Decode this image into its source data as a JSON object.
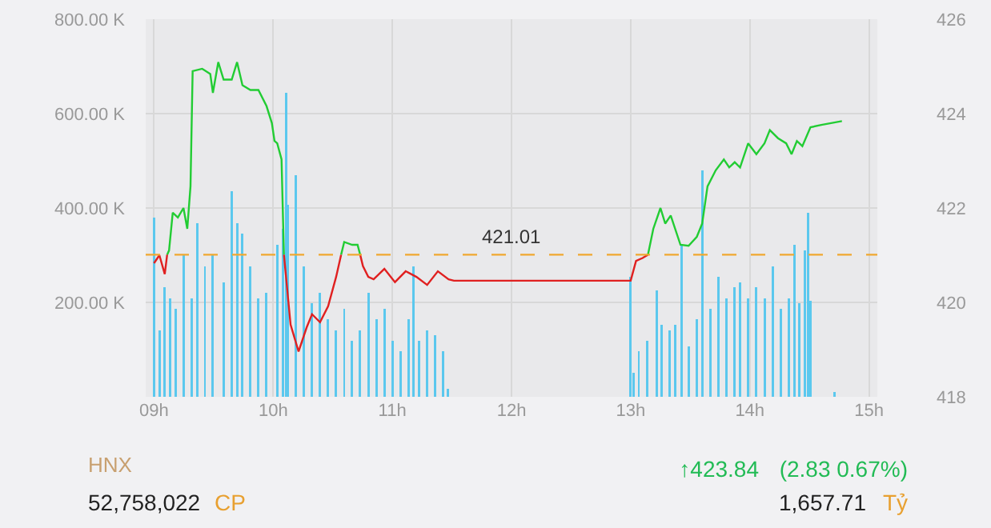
{
  "chart_data": {
    "type": "bar",
    "xlim": [
      8.93,
      15.07
    ],
    "xticks": [
      {
        "value": 9,
        "label": "09h"
      },
      {
        "value": 10,
        "label": "10h"
      },
      {
        "value": 11,
        "label": "11h"
      },
      {
        "value": 12,
        "label": "12h"
      },
      {
        "value": 13,
        "label": "13h"
      },
      {
        "value": 14,
        "label": "14h"
      },
      {
        "value": 15,
        "label": "15h"
      }
    ],
    "ylim": [
      0,
      800
    ],
    "yticks": [
      {
        "value": 200,
        "label": "200.00 K"
      },
      {
        "value": 400,
        "label": "400.00 K"
      },
      {
        "value": 600,
        "label": "600.00 K"
      },
      {
        "value": 800,
        "label": "800.00 K"
      }
    ],
    "y2lim": [
      418,
      426
    ],
    "y2ticks": [
      418,
      420,
      422,
      424,
      426
    ],
    "grid": true,
    "legend": false,
    "series": [
      {
        "color": "#5bc8ee",
        "x": [
          9.0,
          9.045,
          9.09,
          9.135,
          9.18,
          9.247,
          9.315,
          9.36,
          9.427,
          9.494,
          9.584,
          9.652,
          9.697,
          9.742,
          9.809,
          9.876,
          9.944,
          10.034,
          10.079,
          10.11,
          10.124,
          10.191,
          10.258,
          10.326,
          10.393,
          10.461,
          10.528,
          10.596,
          10.663,
          10.73,
          10.798,
          10.865,
          10.933,
          11.0,
          11.067,
          11.135,
          11.18,
          11.225,
          11.292,
          11.36,
          11.427,
          11.463,
          13.0,
          13.025,
          13.068,
          13.14,
          13.222,
          13.258,
          13.327,
          13.373,
          13.427,
          13.486,
          13.555,
          13.6,
          13.668,
          13.736,
          13.805,
          13.873,
          13.918,
          13.986,
          14.055,
          14.123,
          14.191,
          14.259,
          14.327,
          14.373,
          14.418,
          14.464,
          14.486,
          14.509,
          14.709
        ],
        "values": [
          379,
          141,
          232,
          209,
          186,
          300,
          209,
          367,
          277,
          300,
          243,
          435,
          367,
          345,
          277,
          209,
          220,
          322,
          356,
          644,
          407,
          469,
          277,
          198,
          220,
          164,
          141,
          186,
          119,
          141,
          220,
          164,
          186,
          119,
          96,
          164,
          277,
          119,
          141,
          130,
          96,
          17,
          254,
          51,
          96,
          119,
          226,
          153,
          141,
          153,
          322,
          107,
          164,
          480,
          186,
          254,
          209,
          232,
          243,
          209,
          232,
          209,
          277,
          186,
          209,
          322,
          198,
          311,
          390,
          203,
          11
        ]
      },
      {
        "type": "line",
        "axis": "y2",
        "color": "#22cc33",
        "x": [
          9.11,
          9.126,
          9.157,
          9.2,
          9.247,
          9.279,
          9.306,
          9.324,
          9.404,
          9.472,
          9.494,
          9.539,
          9.584,
          9.652,
          9.697,
          9.742,
          9.809,
          9.876,
          9.944,
          9.989,
          10.011,
          10.034,
          10.07,
          10.09,
          10.3,
          10.57,
          10.596,
          10.663,
          10.708,
          10.73,
          12,
          13.145,
          13.19,
          13.25,
          13.29,
          13.336,
          13.418,
          13.486,
          13.555,
          13.6,
          13.645,
          13.714,
          13.782,
          13.827,
          13.873,
          13.918,
          13.986,
          14.055,
          14.123,
          14.168,
          14.236,
          14.305,
          14.35,
          14.395,
          14.441,
          14.509,
          14.6,
          14.773
        ],
        "values": [
          421.01,
          421.1,
          421.9,
          421.8,
          422.0,
          421.56,
          422.46,
          424.9,
          424.95,
          424.84,
          424.44,
          425.09,
          424.72,
          424.72,
          425.09,
          424.6,
          424.5,
          424.5,
          424.16,
          423.8,
          423.42,
          423.37,
          423.03,
          421.01,
          null,
          421.01,
          421.28,
          421.22,
          421.22,
          421.01,
          null,
          421.01,
          421.56,
          422.0,
          421.67,
          421.84,
          421.22,
          421.2,
          421.39,
          421.67,
          422.46,
          422.8,
          423.03,
          422.86,
          422.97,
          422.86,
          423.37,
          423.14,
          423.37,
          423.65,
          423.48,
          423.37,
          423.14,
          423.42,
          423.31,
          423.71,
          423.76,
          423.84
        ]
      },
      {
        "type": "line",
        "axis": "y2",
        "color": "#e02020",
        "x": [
          9.0,
          9.045,
          9.09,
          9.11,
          9.5,
          10.09,
          10.146,
          10.213,
          10.281,
          10.326,
          10.393,
          10.461,
          10.528,
          10.57,
          10.65,
          10.73,
          10.753,
          10.798,
          10.843,
          10.933,
          11.022,
          11.112,
          11.202,
          11.292,
          11.382,
          11.472,
          11.517,
          13.0,
          13.045,
          13.1,
          13.145
        ],
        "values": [
          420.83,
          421.0,
          420.6,
          421.01,
          null,
          421.01,
          419.53,
          418.96,
          419.47,
          419.75,
          419.58,
          419.92,
          420.54,
          421.01,
          null,
          421.01,
          420.77,
          420.54,
          420.49,
          420.71,
          420.43,
          420.66,
          420.54,
          420.37,
          420.66,
          420.49,
          420.46,
          420.46,
          420.88,
          420.94,
          421.01
        ]
      }
    ],
    "ref_lines": [
      {
        "axis": "y2",
        "value": 421.01,
        "label": "421.01",
        "color": "#f0a830",
        "line_style": "dashed"
      }
    ],
    "annotations": [
      "HNX",
      "52,758,022",
      "CP",
      "↑423.84",
      "(2.83  0.67%)",
      "1,657.71",
      "Tỷ"
    ]
  }
}
